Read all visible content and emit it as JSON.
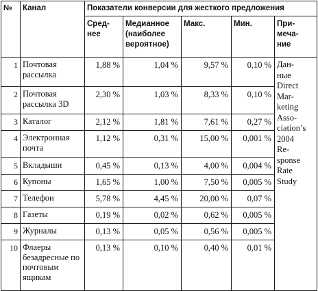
{
  "table": {
    "headers": {
      "num": "№",
      "channel": "Канал",
      "group": "Показатели конверсии для жесткого предложения",
      "average": "Сред-\nнее",
      "median": "Медианное\n(наиболее\nвероятное)",
      "max": "Макс.",
      "min": "Мин.",
      "note": "При-\nмеча-\nние"
    },
    "note": "Дан-\nные\nDirect\nMar-\nketing\nAsso-\nciation’s\n2004\nRe-\nsponse\nRate\nStudy",
    "rows": [
      {
        "num": "1",
        "channel": "Почтовая рассылка",
        "average": "1,88 %",
        "median": "1,04 %",
        "max": "9,57 %",
        "min": "0,10 %"
      },
      {
        "num": "2",
        "channel": "Почтовая рассылка 3D",
        "average": "2,30 %",
        "median": "1,03 %",
        "max": "8,33 %",
        "min": "0,10 %"
      },
      {
        "num": "3",
        "channel": "Каталог",
        "average": "2,12 %",
        "median": "1,81 %",
        "max": "7,61 %",
        "min": "0,27 %"
      },
      {
        "num": "4",
        "channel": "Электронная почта",
        "average": "1,12 %",
        "median": "0,31 %",
        "max": "15,00 %",
        "min": "0,001 %"
      },
      {
        "num": "5",
        "channel": "Вкладыши",
        "average": "0,45 %",
        "median": "0,13 %",
        "max": "4,00 %",
        "min": "0,004 %"
      },
      {
        "num": "6",
        "channel": "Купоны",
        "average": "1,65 %",
        "median": "1,00 %",
        "max": "7,50 %",
        "min": "0,005 %"
      },
      {
        "num": "7",
        "channel": "Телефон",
        "average": "5,78 %",
        "median": "4,45 %",
        "max": "20,00 %",
        "min": "0,07 %"
      },
      {
        "num": "8",
        "channel": "Газеты",
        "average": "0,19 %",
        "median": "0,02 %",
        "max": "0,62 %",
        "min": "0,005 %"
      },
      {
        "num": "9",
        "channel": "Журналы",
        "average": "0,13 %",
        "median": "0,05 %",
        "max": "0,56 %",
        "min": "0,005 %"
      },
      {
        "num": "10",
        "channel": "Флаеры безадресные по почтовым ящикам",
        "average": "0,13 %",
        "median": "0,10 %",
        "max": "0,40 %",
        "min": "0,01 %"
      }
    ]
  }
}
